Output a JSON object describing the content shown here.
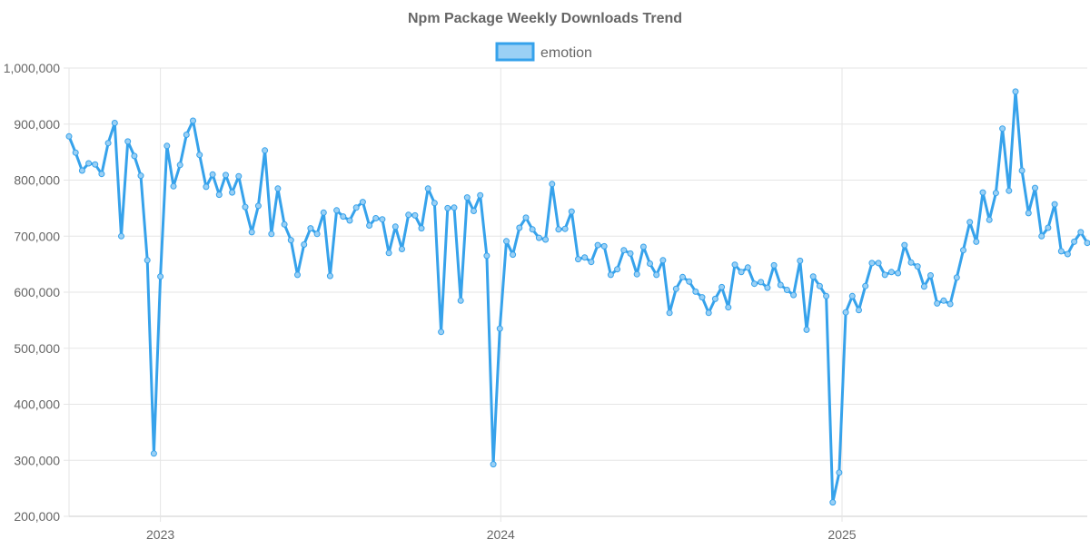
{
  "chart_data": {
    "type": "line",
    "title": "Npm Package Weekly Downloads Trend",
    "xlabel": "",
    "ylabel": "",
    "ylim": [
      200000,
      1000000
    ],
    "yticks": [
      "200,000",
      "300,000",
      "400,000",
      "500,000",
      "600,000",
      "700,000",
      "800,000",
      "900,000",
      "1,000,000"
    ],
    "xlim": [
      "2022-09-25",
      "2025-09-21"
    ],
    "xticks": [
      {
        "label": "2023",
        "date": "2023-01-01"
      },
      {
        "label": "2024",
        "date": "2024-01-01"
      },
      {
        "label": "2025",
        "date": "2025-01-01"
      }
    ],
    "legend_position": "top-center",
    "grid": true,
    "colors": {
      "line": "#36a2eb",
      "fill": "#9ad0f5",
      "grid": "#e5e5e5",
      "text": "#666666"
    },
    "series": [
      {
        "name": "emotion",
        "start": "2022-09-25",
        "interval_days": 7,
        "values": [
          878000,
          849000,
          817000,
          830000,
          828000,
          811000,
          866000,
          902000,
          700000,
          869000,
          843000,
          808000,
          657000,
          312000,
          628000,
          861000,
          789000,
          827000,
          881000,
          906000,
          845000,
          788000,
          810000,
          774000,
          809000,
          778000,
          807000,
          752000,
          707000,
          754000,
          853000,
          704000,
          785000,
          721000,
          693000,
          631000,
          685000,
          714000,
          704000,
          742000,
          629000,
          746000,
          735000,
          728000,
          751000,
          761000,
          719000,
          732000,
          730000,
          670000,
          717000,
          677000,
          738000,
          737000,
          714000,
          785000,
          759000,
          529000,
          750000,
          751000,
          585000,
          769000,
          745000,
          773000,
          665000,
          293000,
          535000,
          691000,
          667000,
          715000,
          733000,
          712000,
          697000,
          694000,
          793000,
          712000,
          713000,
          744000,
          659000,
          662000,
          654000,
          684000,
          682000,
          631000,
          641000,
          675000,
          669000,
          632000,
          681000,
          651000,
          631000,
          657000,
          563000,
          606000,
          627000,
          619000,
          601000,
          591000,
          563000,
          588000,
          609000,
          573000,
          649000,
          636000,
          644000,
          615000,
          618000,
          608000,
          648000,
          613000,
          604000,
          595000,
          656000,
          533000,
          628000,
          611000,
          593000,
          225000,
          278000,
          564000,
          593000,
          568000,
          611000,
          652000,
          652000,
          631000,
          636000,
          634000,
          684000,
          653000,
          646000,
          610000,
          630000,
          580000,
          585000,
          579000,
          626000,
          675000,
          725000,
          690000,
          778000,
          729000,
          777000,
          892000,
          781000,
          958000,
          817000,
          741000,
          786000,
          700000,
          715000,
          757000,
          673000,
          668000,
          690000,
          707000,
          688000
        ]
      }
    ]
  }
}
